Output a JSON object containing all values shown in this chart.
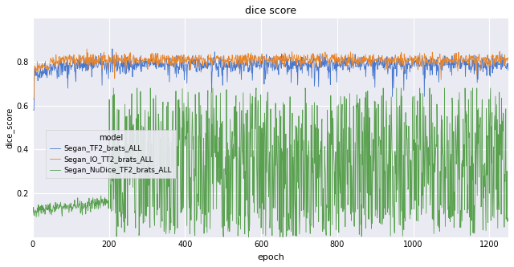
{
  "title": "dice score",
  "xlabel": "epoch",
  "ylabel": "dice_score",
  "xlim": [
    0,
    1250
  ],
  "ylim": [
    0.0,
    1.0
  ],
  "yticks": [
    0.2,
    0.4,
    0.6,
    0.8
  ],
  "xticks": [
    0,
    200,
    400,
    600,
    800,
    1000,
    1200
  ],
  "legend_title": "model",
  "legend_entries": [
    "Segan_TF2_brats_ALL",
    "Segan_IO_TT2_brats_ALL",
    "Segan_NuDice_TF2_brats_ALL"
  ],
  "colors": [
    "#4878CF",
    "#E8852A",
    "#59A14F"
  ],
  "seed": 42,
  "n_epochs": 1250,
  "background_color": "#eaeaf2",
  "grid_color": "#ffffff",
  "linewidth": 0.6
}
